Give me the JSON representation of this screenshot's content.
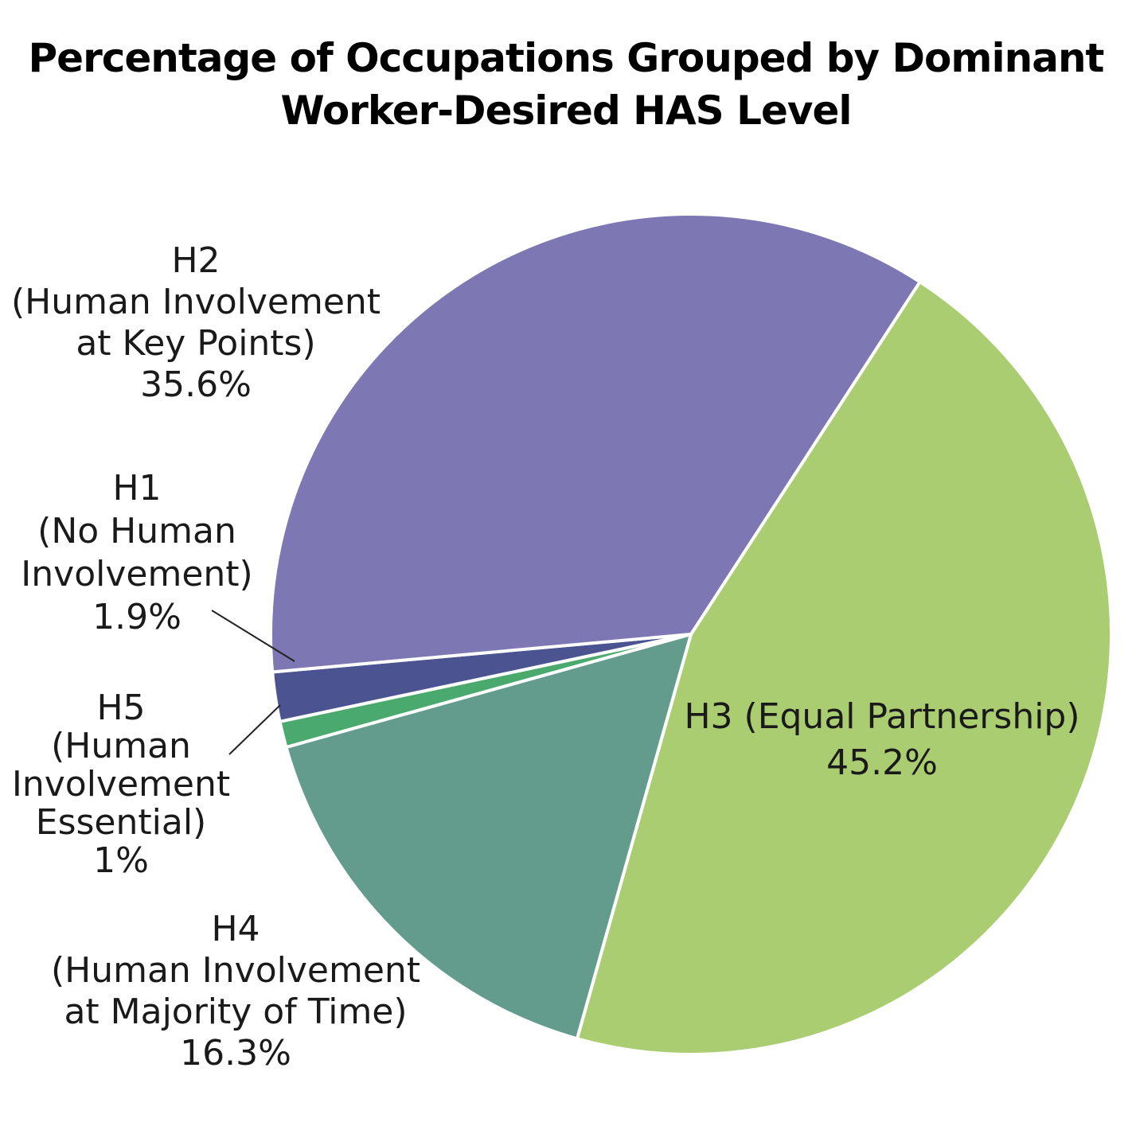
{
  "chart_data": {
    "type": "pie",
    "title_lines": [
      "Percentage of Occupations Grouped by Dominant",
      "Worker-Desired HAS Level"
    ],
    "slices": [
      {
        "id": "h3",
        "label_lines": [
          "H3 (Equal Partnership)"
        ],
        "value": 45.2,
        "value_label": "45.2%",
        "color": "#abcd72"
      },
      {
        "id": "h4",
        "label_lines": [
          "H4",
          "(Human Involvement",
          "at Majority of Time)"
        ],
        "value": 16.3,
        "value_label": "16.3%",
        "color": "#639c8d"
      },
      {
        "id": "h5",
        "label_lines": [
          "H5",
          "(Human",
          "Involvement",
          "Essential)"
        ],
        "value": 1,
        "value_label": "1%",
        "color": "#4aa96c"
      },
      {
        "id": "h1",
        "label_lines": [
          "H1",
          "(No Human",
          "Involvement)"
        ],
        "value": 1.9,
        "value_label": "1.9%",
        "color": "#4b5390"
      },
      {
        "id": "h2",
        "label_lines": [
          "H2",
          "(Human Involvement",
          "at Key Points)"
        ],
        "value": 35.6,
        "value_label": "35.6%",
        "color": "#7d78b3"
      }
    ]
  }
}
